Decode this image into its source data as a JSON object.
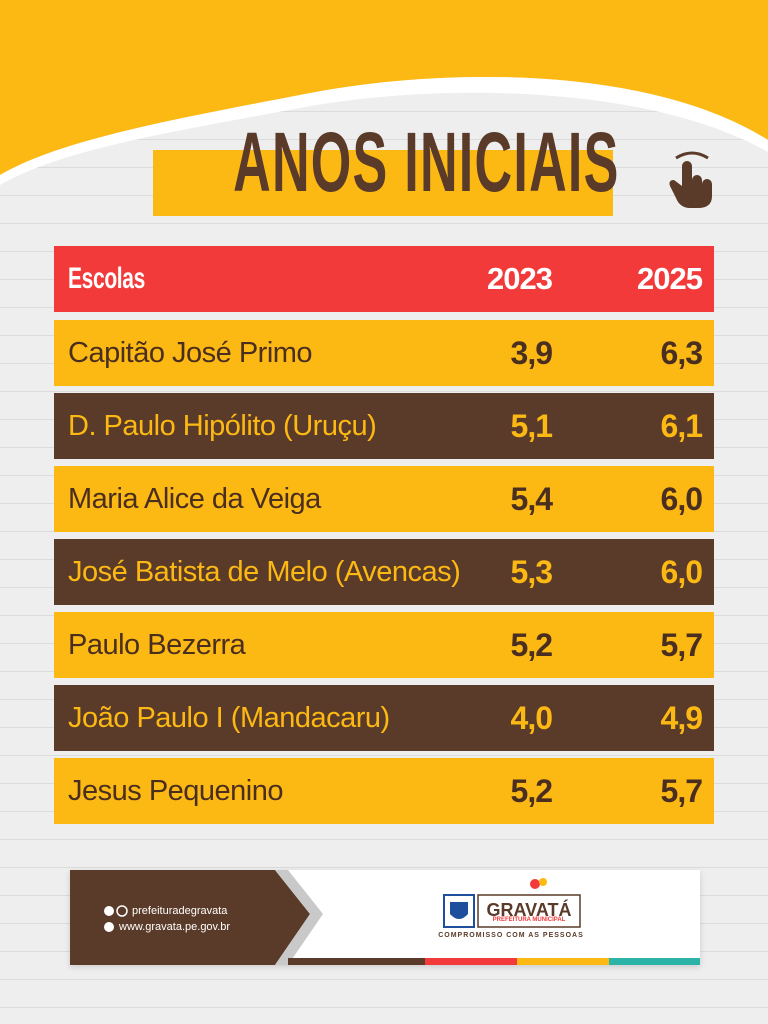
{
  "header": {
    "title": "ANOS INICIAIS"
  },
  "table": {
    "columns": [
      "Escolas",
      "2023",
      "2025"
    ],
    "rows": [
      [
        "Capitão José Primo",
        "3,9",
        "6,3"
      ],
      [
        "D. Paulo Hipólito (Uruçu)",
        "5,1",
        "6,1"
      ],
      [
        "Maria Alice da Veiga",
        "5,4",
        "6,0"
      ],
      [
        "José Batista de Melo (Avencas)",
        "5,3",
        "6,0"
      ],
      [
        "Paulo Bezerra",
        "5,2",
        "5,7"
      ],
      [
        "João Paulo I (Mandacaru)",
        "4,0",
        "4,9"
      ],
      [
        "Jesus Pequenino",
        "5,2",
        "5,7"
      ]
    ]
  },
  "footer": {
    "social": "prefeituradegravata",
    "website": "www.gravata.pe.gov.br",
    "logo": {
      "name": "GRAVATÁ",
      "subtitle": "PREFEITURA MUNICIPAL",
      "slogan": "COMPROMISSO COM AS PESSOAS"
    }
  }
}
